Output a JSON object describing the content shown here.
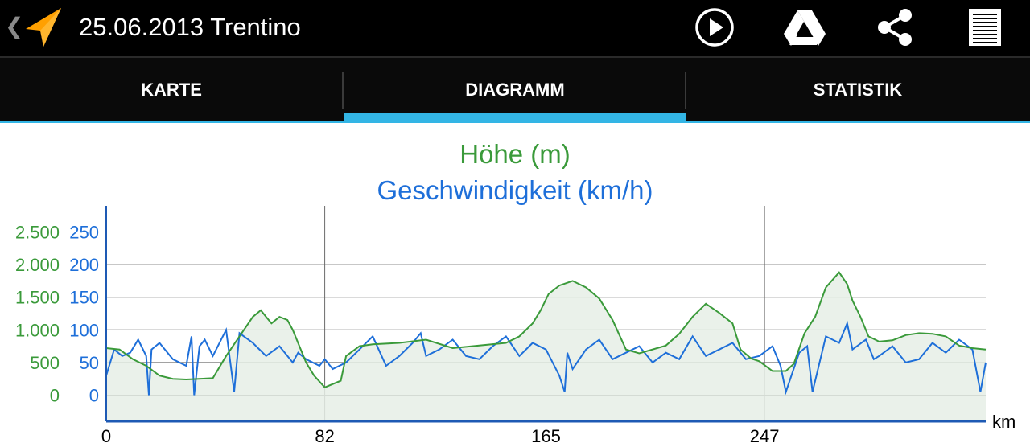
{
  "header": {
    "title": "25.06.2013 Trentino",
    "icons": [
      "back-caret-icon",
      "navigation-arrow-icon",
      "play-icon",
      "google-drive-icon",
      "share-icon",
      "menu-list-icon"
    ]
  },
  "tabs": [
    {
      "label": "KARTE",
      "selected": false
    },
    {
      "label": "DIAGRAMM",
      "selected": true
    },
    {
      "label": "STATISTIK",
      "selected": false
    }
  ],
  "colors": {
    "elevation": "#3a9a3a",
    "speed": "#1e6fd9",
    "tab_indicator": "#33b5e5",
    "actionbar": "#000000",
    "app_icon": "#ffa000"
  },
  "chart_data": {
    "type": "line",
    "titles": [
      "Höhe (m)",
      "Geschwindigkeit (km/h)"
    ],
    "xlabel": "km",
    "x_ticks": [
      "0",
      "82",
      "165",
      "247"
    ],
    "xlim": [
      0,
      330
    ],
    "grid": true,
    "y_left_ticks": {
      "elevation": [
        "2.500",
        "2.000",
        "1.500",
        "1.000",
        "500",
        "0"
      ],
      "speed": [
        "250",
        "200",
        "150",
        "100",
        "50",
        "0"
      ]
    },
    "y_axes": {
      "elevation": {
        "min": -400,
        "max": 2900
      },
      "speed": {
        "min": -40,
        "max": 290
      }
    },
    "series": [
      {
        "name": "Höhe (m)",
        "axis": "elevation",
        "filled": true,
        "x": [
          0,
          5,
          10,
          15,
          20,
          25,
          30,
          40,
          45,
          50,
          55,
          58,
          60,
          62,
          65,
          68,
          70,
          75,
          78,
          82,
          88,
          90,
          95,
          100,
          110,
          120,
          130,
          140,
          150,
          155,
          160,
          163,
          166,
          170,
          175,
          180,
          185,
          190,
          195,
          200,
          210,
          215,
          220,
          225,
          230,
          235,
          238,
          242,
          245,
          250,
          255,
          258,
          262,
          266,
          270,
          275,
          278,
          280,
          283,
          286,
          290,
          295,
          300,
          305,
          310,
          315,
          320,
          325,
          330
        ],
        "y": [
          720,
          700,
          550,
          450,
          300,
          250,
          240,
          260,
          600,
          900,
          1200,
          1300,
          1200,
          1100,
          1200,
          1150,
          1000,
          500,
          300,
          120,
          220,
          600,
          750,
          780,
          800,
          850,
          720,
          760,
          800,
          900,
          1100,
          1300,
          1550,
          1680,
          1750,
          1650,
          1480,
          1150,
          700,
          640,
          760,
          940,
          1200,
          1400,
          1260,
          1100,
          700,
          560,
          520,
          370,
          370,
          480,
          950,
          1200,
          1650,
          1880,
          1700,
          1450,
          1200,
          900,
          820,
          840,
          920,
          950,
          940,
          900,
          760,
          720,
          700
        ]
      },
      {
        "name": "Geschwindigkeit (km/h)",
        "axis": "speed",
        "filled": false,
        "x": [
          0,
          3,
          6,
          9,
          12,
          15,
          16,
          17,
          20,
          25,
          30,
          32,
          33,
          35,
          37,
          40,
          45,
          48,
          50,
          55,
          60,
          65,
          70,
          72,
          75,
          80,
          82,
          85,
          90,
          95,
          100,
          105,
          110,
          115,
          118,
          120,
          125,
          130,
          135,
          140,
          145,
          150,
          155,
          160,
          165,
          170,
          172,
          173,
          175,
          180,
          185,
          190,
          195,
          200,
          205,
          210,
          215,
          220,
          225,
          230,
          235,
          240,
          245,
          250,
          253,
          255,
          260,
          263,
          265,
          270,
          275,
          278,
          280,
          285,
          288,
          290,
          295,
          300,
          305,
          310,
          315,
          320,
          325,
          328,
          330
        ],
        "y": [
          30,
          70,
          60,
          65,
          85,
          60,
          0,
          70,
          80,
          55,
          45,
          90,
          0,
          75,
          85,
          60,
          100,
          5,
          95,
          80,
          60,
          75,
          50,
          65,
          55,
          45,
          55,
          40,
          50,
          70,
          90,
          45,
          60,
          80,
          95,
          60,
          70,
          85,
          60,
          55,
          75,
          90,
          60,
          80,
          70,
          30,
          5,
          65,
          40,
          70,
          85,
          55,
          65,
          75,
          50,
          65,
          55,
          90,
          60,
          70,
          80,
          55,
          60,
          75,
          45,
          5,
          65,
          75,
          5,
          90,
          80,
          110,
          70,
          85,
          55,
          60,
          75,
          50,
          55,
          80,
          65,
          85,
          70,
          5,
          50
        ]
      }
    ]
  }
}
